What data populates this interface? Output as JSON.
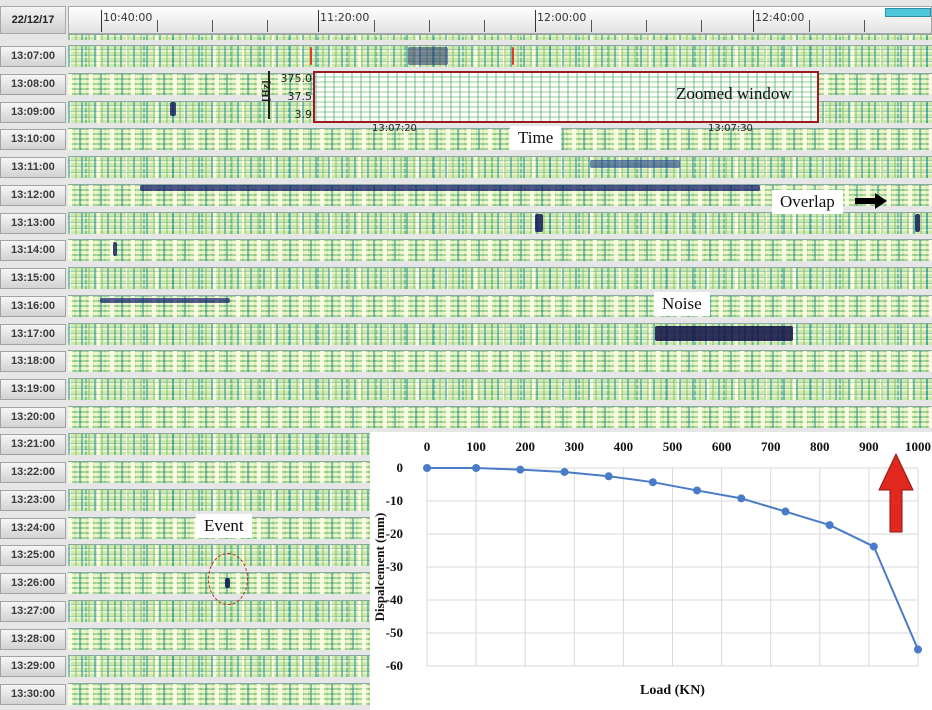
{
  "header": {
    "date": "22/12/17",
    "time_ticks": [
      "10:40:00",
      "11:20:00",
      "12:00:00",
      "12:40:00"
    ]
  },
  "row_labels": [
    "13:07:00",
    "13:08:00",
    "13:09:00",
    "13:10:00",
    "13:11:00",
    "13:12:00",
    "13:13:00",
    "13:14:00",
    "13:15:00",
    "13:16:00",
    "13:17:00",
    "13:18:00",
    "13:19:00",
    "13:20:00",
    "13:21:00",
    "13:22:00",
    "13:23:00",
    "13:24:00",
    "13:25:00",
    "13:26:00",
    "13:27:00",
    "13:28:00",
    "13:29:00",
    "13:30:00"
  ],
  "zoomed_window": {
    "title": "Zoomed window",
    "y_unit": "[Hz]",
    "y_ticks": [
      "375.0",
      "37.5",
      "3.9"
    ],
    "x_ticks": [
      "13:07:20",
      "13:07:30"
    ]
  },
  "annotations": {
    "time": "Time",
    "overlap": "Overlap",
    "noise": "Noise",
    "event": "Event"
  },
  "colors": {
    "zoom_border": "#9a1c22",
    "curve": "#4a7bc8",
    "arrow": "#e0281f",
    "event_circle": "#cc2222"
  },
  "chart_data": {
    "type": "line",
    "xlabel": "Load (KN)",
    "ylabel": "Dispalcement (mm)",
    "x_ticks": [
      0,
      100,
      200,
      300,
      400,
      500,
      600,
      700,
      800,
      900,
      1000
    ],
    "y_ticks": [
      0,
      -10,
      -20,
      -30,
      -40,
      -50,
      -60
    ],
    "xlim": [
      0,
      1000
    ],
    "ylim": [
      -60,
      0
    ],
    "x_axis_position": "top",
    "grid": true,
    "series": [
      {
        "x": [
          0,
          100,
          190,
          280,
          370,
          460,
          550,
          640,
          730,
          820,
          910,
          1000
        ],
        "y": [
          0,
          0,
          -0.5,
          -1.2,
          -2.5,
          -4.3,
          -6.8,
          -9.2,
          -13.2,
          -17.3,
          -23.8,
          -55
        ]
      }
    ]
  }
}
